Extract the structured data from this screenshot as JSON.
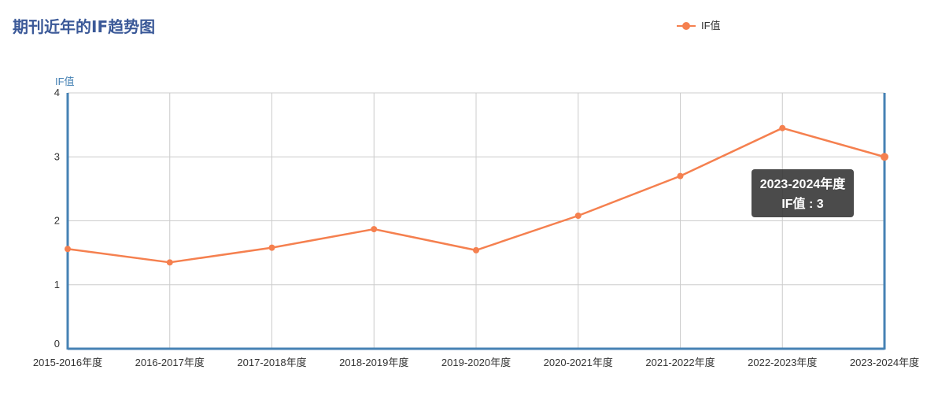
{
  "chart_data": {
    "type": "line",
    "title": "期刊近年的IF趋势图",
    "ylabel": "IF值",
    "xlabel": "",
    "categories": [
      "2015-2016年度",
      "2016-2017年度",
      "2017-2018年度",
      "2018-2019年度",
      "2019-2020年度",
      "2020-2021年度",
      "2021-2022年度",
      "2022-2023年度",
      "2023-2024年度"
    ],
    "series": [
      {
        "name": "IF值",
        "values": [
          1.56,
          1.35,
          1.58,
          1.87,
          1.54,
          2.08,
          2.7,
          3.45,
          3.0
        ]
      }
    ],
    "ylim": [
      0,
      4
    ],
    "yticks": [
      "0",
      "1",
      "2",
      "3",
      "4"
    ],
    "grid": true,
    "legend_position": "top-right",
    "colors": {
      "series": "#f5804f",
      "axis": "#4682b4",
      "grid": "#cccccc",
      "title": "#3b5998"
    },
    "tooltip": {
      "category": "2023-2024年度",
      "series_label": "IF值",
      "separator": " : ",
      "value": "3"
    }
  }
}
